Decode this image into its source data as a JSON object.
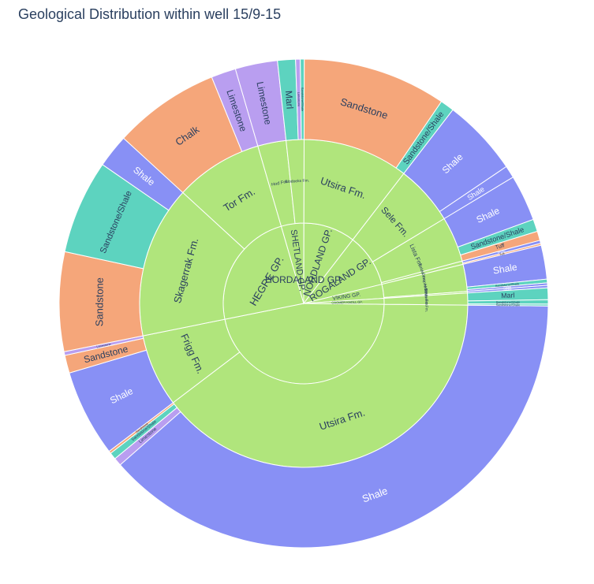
{
  "chart_data": {
    "type": "sunburst",
    "title": "Geological Distribution within well 15/9-15",
    "colors": {
      "inner": "#b0e57c",
      "Shale": "#8890f5",
      "Sandstone": "#f5a67a",
      "Sandstone/Shale": "#5dd3bf",
      "Limestone": "#b99ef0",
      "Chalk": "#f5a67a",
      "Marl": "#5dd3bf",
      "Tuff": "#f5a67a",
      "other": "#e0a0c0"
    },
    "groups": [
      {
        "name": "HORDALAND GP.",
        "formations": [
          {
            "name": "Utsira Fm.",
            "lithologies": [
              {
                "name": "Shale",
                "value": 1880
              },
              {
                "name": "Limestone",
                "value": 26
              },
              {
                "name": "Sandstone/Shale",
                "value": 22
              },
              {
                "name": "Sandstone",
                "value": 8
              }
            ]
          },
          {
            "name": "Frigg Fm.",
            "lithologies": [
              {
                "name": "Shale",
                "value": 282
              },
              {
                "name": "Sandstone",
                "value": 58
              },
              {
                "name": "Limestone",
                "value": 12
              }
            ]
          }
        ]
      },
      {
        "name": "HEGRE GP.",
        "formations": [
          {
            "name": "Skagerrak Fm.",
            "lithologies": [
              {
                "name": "Sandstone",
                "value": 322
              },
              {
                "name": "Sandstone/Shale",
                "value": 305
              },
              {
                "name": "Shale",
                "value": 108
              }
            ]
          },
          {
            "name": "Tor Fm.",
            "lithologies": [
              {
                "name": "Chalk",
                "value": 345
              },
              {
                "name": "Limestone",
                "value": 80
              }
            ]
          }
        ]
      },
      {
        "name": "SHETLAND GP.",
        "formations": [
          {
            "name": "Hod Fm.",
            "lithologies": [
              {
                "name": "Limestone",
                "value": 137
              }
            ]
          },
          {
            "name": "Blodoeks Fm.",
            "lithologies": [
              {
                "name": "Marl",
                "value": 58
              },
              {
                "name": "Limestone",
                "value": 15
              },
              {
                "name": "Sandstone/Shale",
                "value": 13
              }
            ]
          }
        ]
      },
      {
        "name": "NORDLAND GP.",
        "formations": [
          {
            "name": "Utsira Fm.",
            "lithologies": [
              {
                "name": "Sandstone",
                "value": 465
              },
              {
                "name": "Sandstone/Shale",
                "value": 45
              }
            ]
          }
        ]
      },
      {
        "name": "ROGALAND GP.",
        "formations": [
          {
            "name": "Sele Fm.",
            "lithologies": [
              {
                "name": "Shale",
                "value": 250
              },
              {
                "name": "Shale",
                "value": 40
              }
            ]
          },
          {
            "name": "Lista Fm.",
            "lithologies": [
              {
                "name": "Shale",
                "value": 150
              },
              {
                "name": "Sandstone/Shale",
                "value": 40
              },
              {
                "name": "Tuff",
                "value": 30
              }
            ]
          },
          {
            "name": "Balder Fm.",
            "lithologies": [
              {
                "name": "Shale",
                "value": 10
              },
              {
                "name": "Tuff",
                "value": 6
              }
            ]
          }
        ]
      },
      {
        "name": "VIKING GP.",
        "formations": [
          {
            "name": "Draupne Fm.",
            "lithologies": [
              {
                "name": "Shale",
                "value": 110
              },
              {
                "name": "Sandstone/Shale",
                "value": 12
              },
              {
                "name": "Shale",
                "value": 8
              }
            ]
          },
          {
            "name": "Heather Fm.",
            "lithologies": [
              {
                "name": "Shale",
                "value": 8
              }
            ]
          }
        ]
      },
      {
        "name": "CROMER KNOLL GP.",
        "formations": [
          {
            "name": "Blodoeks Fm.",
            "lithologies": [
              {
                "name": "Marl",
                "value": 38
              },
              {
                "name": "Sandstone/Shale",
                "value": 14
              },
              {
                "name": "Sandstone/Shale",
                "value": 6
              }
            ]
          }
        ]
      }
    ]
  }
}
